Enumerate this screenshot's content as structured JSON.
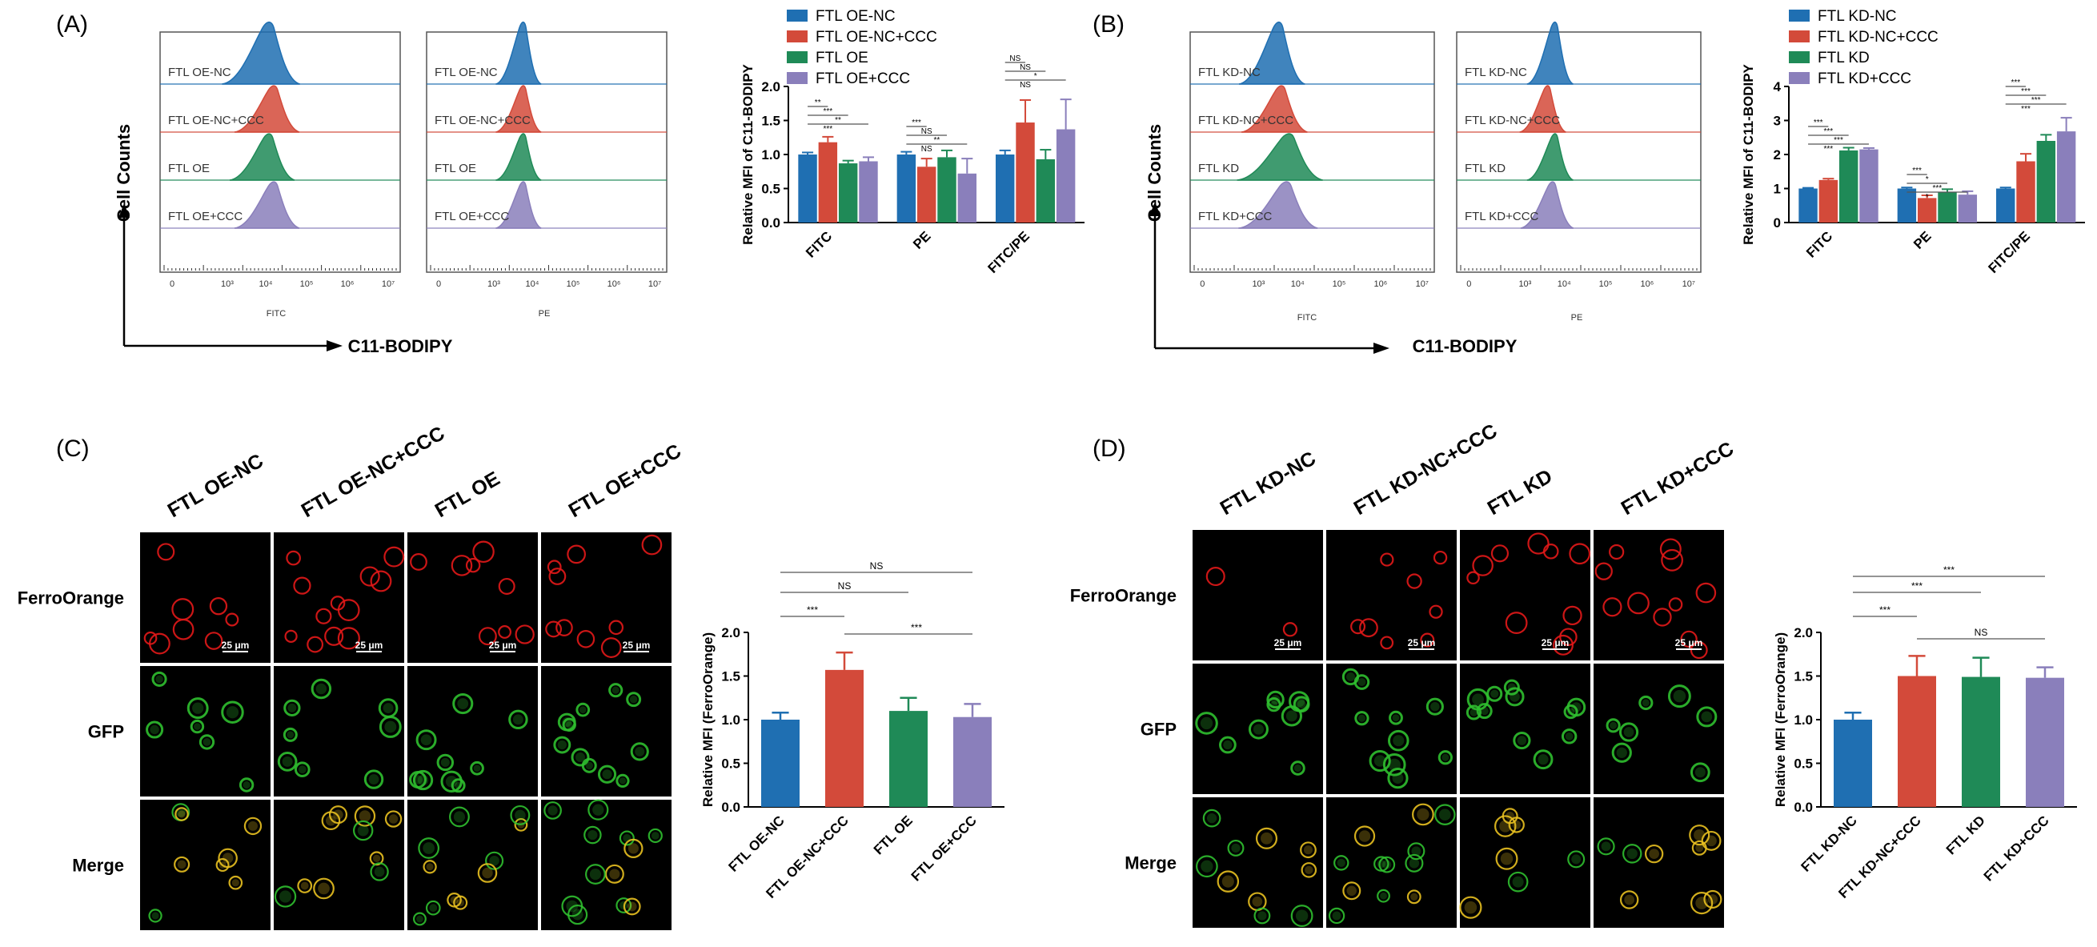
{
  "colors": {
    "blue": "#1f6fb2",
    "red": "#d34a3a",
    "green": "#1f8a57",
    "purple": "#8a7fbb",
    "cell_red": "#e21818",
    "cell_green": "#2fbf2f",
    "cell_merge": "#e8c020"
  },
  "icons": {
    "y_arrow": "arrow-up-icon",
    "x_arrow": "arrow-right-icon"
  },
  "panels": {
    "A": {
      "letter": "(A)",
      "arrow_y_label": "Cell Counts",
      "arrow_x_label": "C11-BODIPY",
      "hist_rows": [
        "FTL OE-NC",
        "FTL OE-NC+CCC",
        "FTL OE",
        "FTL OE+CCC"
      ],
      "channels": [
        "FITC",
        "PE"
      ],
      "hist_ticks": [
        "0",
        "10³",
        "10⁴",
        "10⁵",
        "10⁶",
        "10⁷"
      ]
    },
    "B": {
      "letter": "(B)",
      "arrow_y_label": "Cell Counts",
      "arrow_x_label": "C11-BODIPY",
      "hist_rows": [
        "FTL KD-NC",
        "FTL KD-NC+CCC",
        "FTL KD",
        "FTL KD+CCC"
      ],
      "channels": [
        "FITC",
        "PE"
      ],
      "hist_ticks": [
        "0",
        "10³",
        "10⁴",
        "10⁵",
        "10⁶",
        "10⁷"
      ]
    },
    "C": {
      "letter": "(C)",
      "columns": [
        "FTL OE-NC",
        "FTL OE-NC+CCC",
        "FTL OE",
        "FTL OE+CCC"
      ],
      "rows": [
        "FerroOrange",
        "GFP",
        "Merge"
      ],
      "scale_bar": "25 μm"
    },
    "D": {
      "letter": "(D)",
      "columns": [
        "FTL KD-NC",
        "FTL KD-NC+CCC",
        "FTL KD",
        "FTL KD+CCC"
      ],
      "rows": [
        "FerroOrange",
        "GFP",
        "Merge"
      ],
      "scale_bar": "25 μm"
    }
  },
  "chart_data": [
    {
      "id": "A",
      "type": "bar",
      "title": "",
      "xlabel": "",
      "ylabel": "Relative MFI of C11-BODIPY",
      "ylim": [
        0,
        2.0
      ],
      "yticks": [
        "0.0",
        "0.5",
        "1.0",
        "1.5",
        "2.0"
      ],
      "categories": [
        "FITC",
        "PE",
        "FITC/PE"
      ],
      "legend_position": "top",
      "series": [
        {
          "name": "FTL OE-NC",
          "values": [
            1.0,
            1.0,
            1.0
          ],
          "errors": [
            0.03,
            0.04,
            0.06
          ]
        },
        {
          "name": "FTL OE-NC+CCC",
          "values": [
            1.18,
            0.82,
            1.47
          ],
          "errors": [
            0.08,
            0.12,
            0.33
          ]
        },
        {
          "name": "FTL OE",
          "values": [
            0.87,
            0.96,
            0.93
          ],
          "errors": [
            0.04,
            0.1,
            0.14
          ]
        },
        {
          "name": "FTL OE+CCC",
          "values": [
            0.9,
            0.72,
            1.37
          ],
          "errors": [
            0.06,
            0.22,
            0.44
          ]
        }
      ],
      "significance": [
        [
          "**",
          "***",
          "**",
          "***"
        ],
        [
          "***",
          "NS",
          "**",
          "NS"
        ],
        [
          "NS",
          "NS",
          "*",
          "NS"
        ]
      ]
    },
    {
      "id": "B",
      "type": "bar",
      "title": "",
      "xlabel": "",
      "ylabel": "Relative MFI of C11-BODIPY",
      "ylim": [
        0,
        4
      ],
      "yticks": [
        "0",
        "1",
        "2",
        "3",
        "4"
      ],
      "categories": [
        "FITC",
        "PE",
        "FITC/PE"
      ],
      "legend_position": "top",
      "series": [
        {
          "name": "FTL KD-NC",
          "values": [
            1.0,
            1.0,
            1.0
          ],
          "errors": [
            0.02,
            0.03,
            0.03
          ]
        },
        {
          "name": "FTL KD-NC+CCC",
          "values": [
            1.25,
            0.72,
            1.8
          ],
          "errors": [
            0.04,
            0.08,
            0.22
          ]
        },
        {
          "name": "FTL KD",
          "values": [
            2.12,
            0.9,
            2.4
          ],
          "errors": [
            0.08,
            0.08,
            0.18
          ]
        },
        {
          "name": "FTL KD+CCC",
          "values": [
            2.15,
            0.82,
            2.68
          ],
          "errors": [
            0.04,
            0.1,
            0.4
          ]
        }
      ],
      "significance": [
        [
          "***",
          "***",
          "***",
          "***"
        ],
        [
          "***",
          "*",
          "***",
          "*"
        ],
        [
          "***",
          "***",
          "***",
          "***"
        ]
      ]
    },
    {
      "id": "C",
      "type": "bar",
      "title": "",
      "xlabel": "",
      "ylabel": "Relative MFI (FerroOrange)",
      "ylim": [
        0,
        2.0
      ],
      "yticks": [
        "0.0",
        "0.5",
        "1.0",
        "1.5",
        "2.0"
      ],
      "categories": [
        "FTL OE-NC",
        "FTL OE-NC+CCC",
        "FTL OE",
        "FTL OE+CCC"
      ],
      "values": [
        1.0,
        1.57,
        1.1,
        1.03
      ],
      "errors": [
        0.08,
        0.2,
        0.15,
        0.15
      ],
      "significance": [
        "NS",
        "NS",
        "***",
        "***"
      ]
    },
    {
      "id": "D",
      "type": "bar",
      "title": "",
      "xlabel": "",
      "ylabel": "Relative MFI (FerroOrange)",
      "ylim": [
        0,
        2.0
      ],
      "yticks": [
        "0.0",
        "0.5",
        "1.0",
        "1.5",
        "2.0"
      ],
      "categories": [
        "FTL KD-NC",
        "FTL KD-NC+CCC",
        "FTL KD",
        "FTL KD+CCC"
      ],
      "values": [
        1.0,
        1.5,
        1.49,
        1.48
      ],
      "errors": [
        0.08,
        0.23,
        0.22,
        0.12
      ],
      "significance": [
        "***",
        "***",
        "***",
        "NS"
      ]
    }
  ]
}
